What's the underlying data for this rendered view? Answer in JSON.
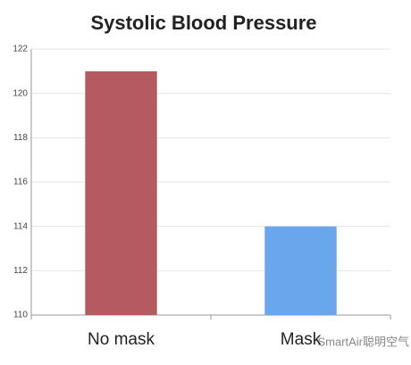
{
  "chart_data": {
    "type": "bar",
    "title": "Systolic Blood Pressure",
    "categories": [
      "No mask",
      "Mask"
    ],
    "values": [
      121,
      114
    ],
    "colors": [
      "#b55a61",
      "#6aa6ec"
    ],
    "ylim": [
      110,
      122
    ],
    "yticks": [
      110,
      112,
      114,
      116,
      118,
      120,
      122
    ],
    "grid": true,
    "watermark": "SmartAir聪明空气"
  }
}
